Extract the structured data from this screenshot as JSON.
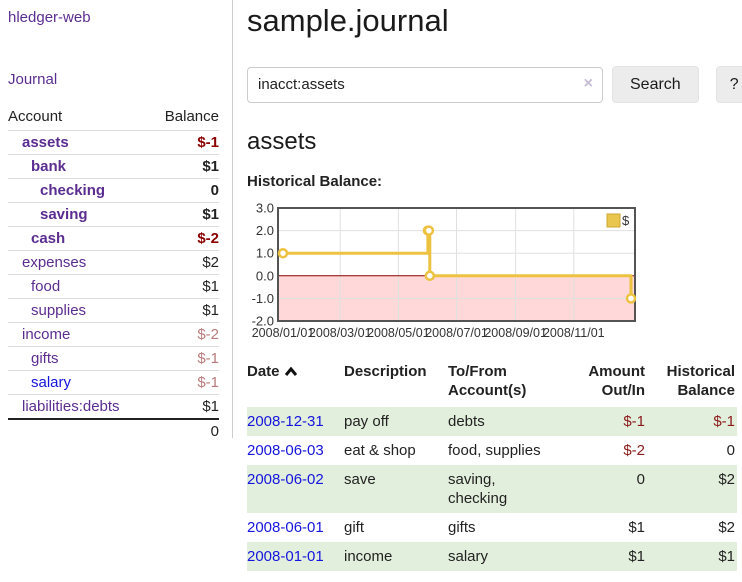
{
  "app": {
    "title": "hledger-web"
  },
  "sidebar": {
    "journal_link": "Journal",
    "accounts_table": {
      "headers": {
        "account": "Account",
        "balance": "Balance"
      },
      "rows": [
        {
          "name": "assets",
          "balance": "$-1"
        },
        {
          "name": "bank",
          "balance": "$1"
        },
        {
          "name": "checking",
          "balance": "0"
        },
        {
          "name": "saving",
          "balance": "$1"
        },
        {
          "name": "cash",
          "balance": "$-2"
        },
        {
          "name": "expenses",
          "balance": "$2"
        },
        {
          "name": "food",
          "balance": "$1"
        },
        {
          "name": "supplies",
          "balance": "$1"
        },
        {
          "name": "income",
          "balance": "$-2"
        },
        {
          "name": "gifts",
          "balance": "$-1"
        },
        {
          "name": "salary",
          "balance": "$-1"
        },
        {
          "name": "liabilities:debts",
          "balance": "$1"
        }
      ],
      "total": "0"
    }
  },
  "header": {
    "title": "sample.journal"
  },
  "search": {
    "value": "inacct:assets",
    "clear_icon": "×",
    "button_label": "Search",
    "help_label": "?"
  },
  "account_page": {
    "heading": "assets",
    "chart_label": "Historical Balance:"
  },
  "chart_data": {
    "type": "line",
    "title": "Historical Balance:",
    "step": true,
    "x_range": [
      "2008-01-01",
      "2008-12-31"
    ],
    "ylim": [
      -2,
      3
    ],
    "y_ticks": [
      3.0,
      2.0,
      1.0,
      0.0,
      -1.0,
      -2.0
    ],
    "x_ticks": [
      "2008/01/01",
      "2008/03/01",
      "2008/05/01",
      "2008/07/01",
      "2008/09/01",
      "2008/11/01"
    ],
    "series": [
      {
        "name": "$",
        "color": "#edc240",
        "points": [
          [
            "2008-01-01",
            1
          ],
          [
            "2008-06-01",
            2
          ],
          [
            "2008-06-02",
            2
          ],
          [
            "2008-06-03",
            0
          ],
          [
            "2008-12-31",
            -1
          ]
        ]
      }
    ],
    "legend": {
      "label": "$",
      "position": "top-right"
    },
    "grid": true,
    "negative_fill": "#ffd9d9",
    "zero_line_color": "#8b0000"
  },
  "register_table": {
    "headers": {
      "date": "Date",
      "description": "Description",
      "account": "To/From Account(s)",
      "amount": "Amount Out/In",
      "balance": "Historical Balance"
    },
    "sort": {
      "column": "date",
      "direction": "ascending"
    },
    "rows": [
      {
        "date": "2008-12-31",
        "description": "pay off",
        "accounts": "debts",
        "amount": "$-1",
        "balance": "$-1"
      },
      {
        "date": "2008-06-03",
        "description": "eat & shop",
        "accounts": "food, supplies",
        "amount": "$-2",
        "balance": "0"
      },
      {
        "date": "2008-06-02",
        "description": "save",
        "accounts": "saving, checking",
        "amount": "0",
        "balance": "$2"
      },
      {
        "date": "2008-06-01",
        "description": "gift",
        "accounts": "gifts",
        "amount": "$1",
        "balance": "$2"
      },
      {
        "date": "2008-01-01",
        "description": "income",
        "accounts": "salary",
        "amount": "$1",
        "balance": "$1"
      }
    ]
  },
  "colors": {
    "link_purple": "#5c2d91",
    "link_blue": "#1515dd",
    "negative_strong": "#8b0000",
    "negative_soft": "#b97c7c",
    "table_negative": "#8b1a1a",
    "row_green": "#e3efdd",
    "chart_line_gold": "#edc240",
    "chart_negative_pink": "#ffd9d9",
    "chart_zero_line": "#8b0000",
    "chart_border": "#545454"
  }
}
